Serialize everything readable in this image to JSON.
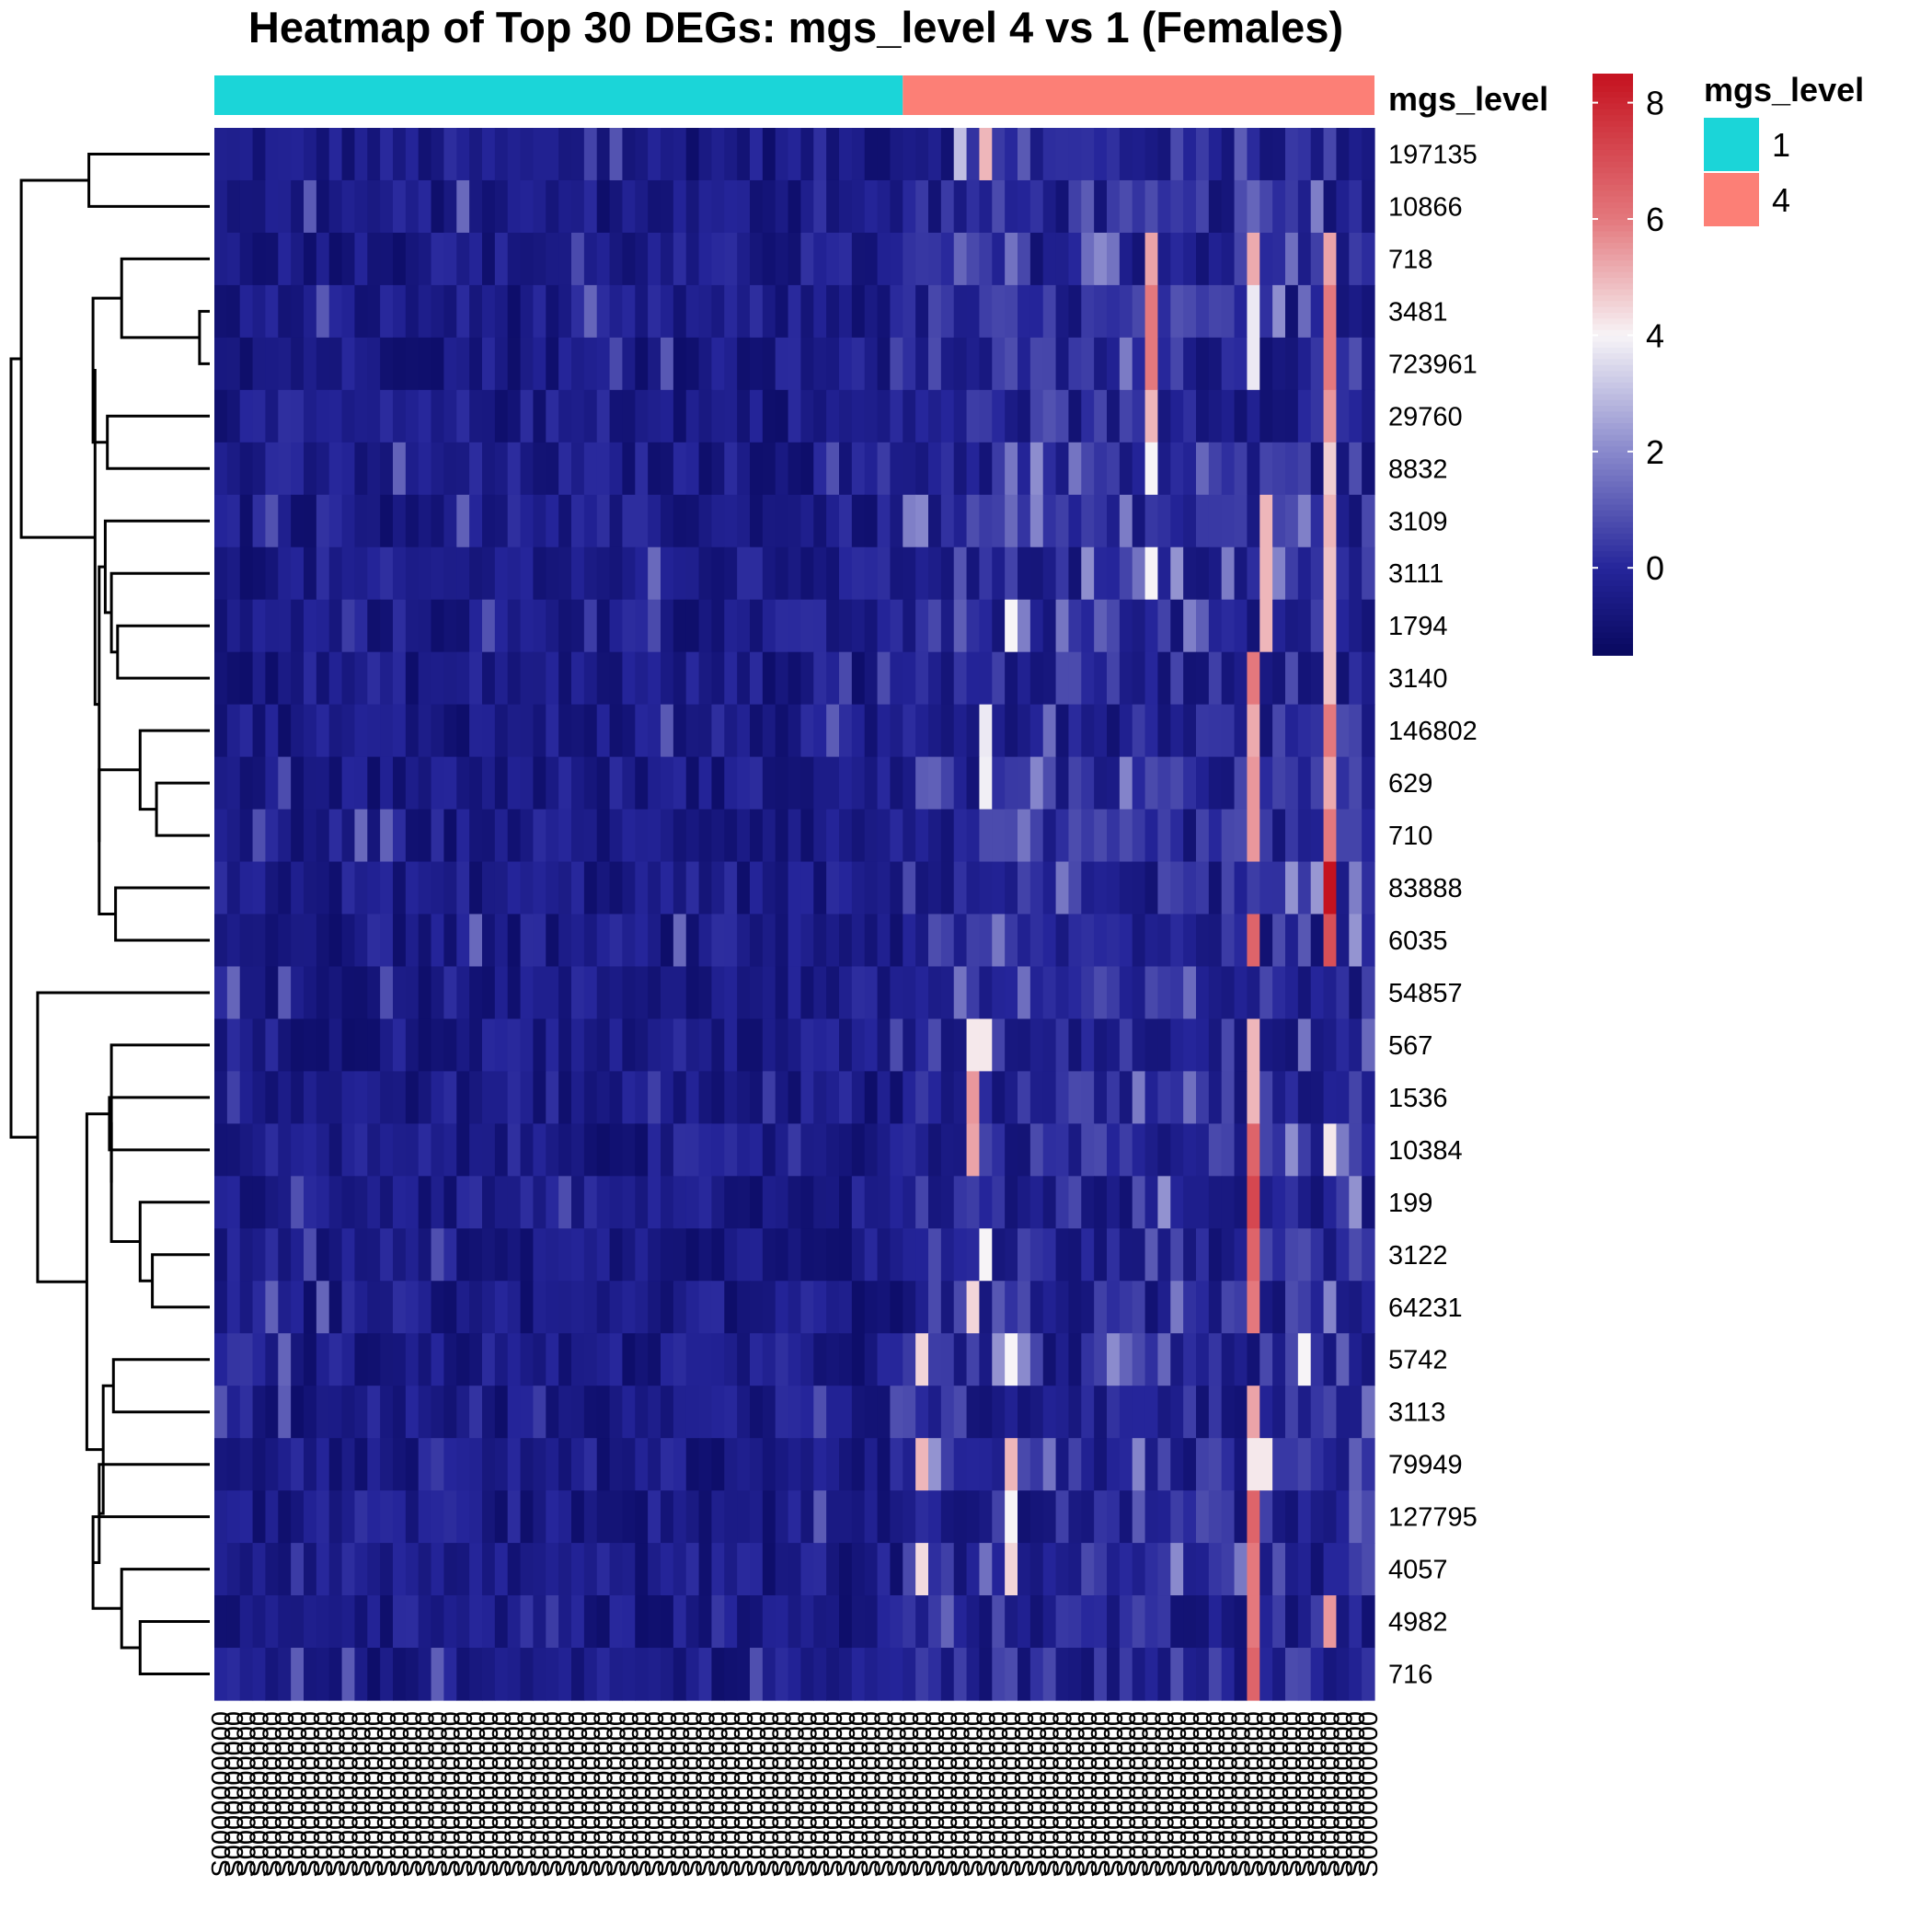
{
  "chart_data": {
    "type": "heatmap",
    "title": "Heatmap of Top 30 DEGs: mgs_level 4 vs 1 (Females)",
    "rows": [
      "197135",
      "10866",
      "718",
      "3481",
      "723961",
      "29760",
      "8832",
      "3109",
      "3111",
      "1794",
      "3140",
      "146802",
      "629",
      "710",
      "83888",
      "6035",
      "54857",
      "567",
      "1536",
      "10384",
      "199",
      "3122",
      "64231",
      "5742",
      "3113",
      "79949",
      "127795",
      "4057",
      "4982",
      "716"
    ],
    "n_columns": 91,
    "column_groups": [
      {
        "level": "1",
        "count": 54
      },
      {
        "level": "4",
        "count": 37
      }
    ],
    "annotation": {
      "name": "mgs_level",
      "levels": [
        {
          "label": "1",
          "color": "#1BD5D8"
        },
        {
          "label": "4",
          "color": "#FC7F76"
        }
      ]
    },
    "color_scale": {
      "min": -1.5,
      "max": 8.5,
      "ticks": [
        0,
        2,
        4,
        6,
        8
      ],
      "stops": [
        {
          "value": -1.5,
          "color": "#08085E"
        },
        {
          "value": 0.0,
          "color": "#25259A"
        },
        {
          "value": 2.0,
          "color": "#8888CC"
        },
        {
          "value": 4.0,
          "color": "#F7F4F7"
        },
        {
          "value": 6.0,
          "color": "#E4787D"
        },
        {
          "value": 8.5,
          "color": "#C5121F"
        }
      ]
    },
    "hotspots": [
      {
        "row": "197135",
        "col": 60,
        "value": 5.0
      },
      {
        "row": "197135",
        "col": 58,
        "value": 3.0
      },
      {
        "row": "718",
        "col": 73,
        "value": 5.3
      },
      {
        "row": "718",
        "col": 81,
        "value": 5.2
      },
      {
        "row": "718",
        "col": 87,
        "value": 5.3
      },
      {
        "row": "3481",
        "col": 73,
        "value": 6.0
      },
      {
        "row": "3481",
        "col": 87,
        "value": 6.0
      },
      {
        "row": "3481",
        "col": 81,
        "value": 3.8
      },
      {
        "row": "723961",
        "col": 73,
        "value": 6.0
      },
      {
        "row": "723961",
        "col": 87,
        "value": 6.0
      },
      {
        "row": "723961",
        "col": 81,
        "value": 3.8
      },
      {
        "row": "29760",
        "col": 73,
        "value": 5.0
      },
      {
        "row": "29760",
        "col": 87,
        "value": 5.5
      },
      {
        "row": "8832",
        "col": 73,
        "value": 4.0
      },
      {
        "row": "8832",
        "col": 87,
        "value": 4.6
      },
      {
        "row": "3109",
        "col": 87,
        "value": 5.0
      },
      {
        "row": "3109",
        "col": 82,
        "value": 5.0
      },
      {
        "row": "3111",
        "col": 73,
        "value": 4.0
      },
      {
        "row": "3111",
        "col": 82,
        "value": 5.0
      },
      {
        "row": "3111",
        "col": 87,
        "value": 4.8
      },
      {
        "row": "1794",
        "col": 62,
        "value": 4.0
      },
      {
        "row": "1794",
        "col": 82,
        "value": 5.0
      },
      {
        "row": "1794",
        "col": 87,
        "value": 4.8
      },
      {
        "row": "3140",
        "col": 81,
        "value": 6.0
      },
      {
        "row": "3140",
        "col": 87,
        "value": 4.8
      },
      {
        "row": "146802",
        "col": 60,
        "value": 3.8
      },
      {
        "row": "146802",
        "col": 81,
        "value": 5.2
      },
      {
        "row": "146802",
        "col": 87,
        "value": 6.0
      },
      {
        "row": "629",
        "col": 60,
        "value": 3.9
      },
      {
        "row": "629",
        "col": 81,
        "value": 5.5
      },
      {
        "row": "629",
        "col": 87,
        "value": 5.2
      },
      {
        "row": "710",
        "col": 81,
        "value": 5.5
      },
      {
        "row": "710",
        "col": 87,
        "value": 6.0
      },
      {
        "row": "83888",
        "col": 87,
        "value": 8.5
      },
      {
        "row": "6035",
        "col": 81,
        "value": 6.5
      },
      {
        "row": "6035",
        "col": 87,
        "value": 7.0
      },
      {
        "row": "567",
        "col": 59,
        "value": 4.2
      },
      {
        "row": "567",
        "col": 60,
        "value": 4.2
      },
      {
        "row": "567",
        "col": 81,
        "value": 5.0
      },
      {
        "row": "1536",
        "col": 59,
        "value": 5.5
      },
      {
        "row": "1536",
        "col": 81,
        "value": 5.0
      },
      {
        "row": "10384",
        "col": 59,
        "value": 5.3
      },
      {
        "row": "10384",
        "col": 81,
        "value": 6.5
      },
      {
        "row": "10384",
        "col": 87,
        "value": 4.2
      },
      {
        "row": "199",
        "col": 81,
        "value": 7.2
      },
      {
        "row": "3122",
        "col": 81,
        "value": 6.5
      },
      {
        "row": "3122",
        "col": 60,
        "value": 4.0
      },
      {
        "row": "64231",
        "col": 59,
        "value": 4.5
      },
      {
        "row": "64231",
        "col": 81,
        "value": 6.0
      },
      {
        "row": "5742",
        "col": 55,
        "value": 4.5
      },
      {
        "row": "5742",
        "col": 62,
        "value": 4.0
      },
      {
        "row": "5742",
        "col": 85,
        "value": 4.0
      },
      {
        "row": "3113",
        "col": 81,
        "value": 5.3
      },
      {
        "row": "79949",
        "col": 55,
        "value": 5.0
      },
      {
        "row": "79949",
        "col": 62,
        "value": 5.0
      },
      {
        "row": "79949",
        "col": 81,
        "value": 4.2
      },
      {
        "row": "79949",
        "col": 82,
        "value": 4.2
      },
      {
        "row": "127795",
        "col": 81,
        "value": 6.5
      },
      {
        "row": "127795",
        "col": 62,
        "value": 4.0
      },
      {
        "row": "4057",
        "col": 55,
        "value": 4.4
      },
      {
        "row": "4057",
        "col": 62,
        "value": 4.5
      },
      {
        "row": "4057",
        "col": 81,
        "value": 6.0
      },
      {
        "row": "4982",
        "col": 81,
        "value": 6.0
      },
      {
        "row": "4982",
        "col": 87,
        "value": 5.5
      },
      {
        "row": "716",
        "col": 81,
        "value": 6.5
      }
    ],
    "row_dendrogram": {
      "merges": [
        [
          -4,
          -5,
          0.05
        ],
        [
          -3,
          1,
          0.43
        ],
        [
          -6,
          -7,
          0.5
        ],
        [
          2,
          3,
          0.57
        ],
        [
          -13,
          -14,
          0.26
        ],
        [
          -12,
          5,
          0.34
        ],
        [
          -15,
          -16,
          0.46
        ],
        [
          6,
          7,
          0.54
        ],
        [
          -10,
          -11,
          0.45
        ],
        [
          -9,
          9,
          0.48
        ],
        [
          -8,
          10,
          0.51
        ],
        [
          11,
          8,
          0.54
        ],
        [
          4,
          12,
          0.56
        ],
        [
          -1,
          -2,
          0.59
        ],
        [
          14,
          13,
          0.92
        ],
        [
          -22,
          -23,
          0.28
        ],
        [
          -21,
          16,
          0.34
        ],
        [
          -19,
          -20,
          0.49
        ],
        [
          18,
          17,
          0.48
        ],
        [
          -18,
          19,
          0.48
        ],
        [
          -24,
          -25,
          0.47
        ],
        [
          -29,
          -30,
          0.34
        ],
        [
          -28,
          22,
          0.43
        ],
        [
          -27,
          23,
          0.57
        ],
        [
          -26,
          24,
          0.54
        ],
        [
          21,
          25,
          0.52
        ],
        [
          20,
          26,
          0.6
        ],
        [
          -17,
          27,
          0.84
        ],
        [
          15,
          28,
          0.97
        ]
      ]
    }
  }
}
